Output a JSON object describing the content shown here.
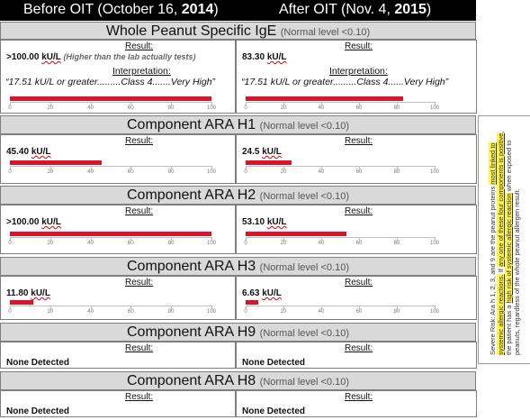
{
  "header": {
    "before_prefix": "Before OIT (October 16, ",
    "before_year": "2014",
    "before_suffix": ")",
    "after_prefix": "After OIT (Nov. 4, ",
    "after_year": "2015",
    "after_suffix": ")"
  },
  "sections": [
    {
      "title": "Whole Peanut Specific IgE",
      "normal": "(Normal level <0.10)",
      "before": {
        "result_label": "Result:",
        "value": ">100.00 ",
        "unit": "kU/L",
        "note": "(Higher than the lab actually tests)",
        "interp_label": "Interpretation:",
        "interp_text": "“17.51 kU/L or greater.........Class 4.......Very High”",
        "bar_value": 100
      },
      "after": {
        "result_label": "Result:",
        "value": "83.30 ",
        "unit": "kU/L",
        "interp_label": "Interpretation:",
        "interp_text": "“17.51 kU/L or greater.........Class 4......Very High”",
        "bar_value": 83.3
      }
    },
    {
      "title": "Component ARA H1",
      "normal": "(Normal level <0.10)",
      "before": {
        "result_label": "Result:",
        "value": "45.40 ",
        "unit": "kU/L",
        "bar_value": 45.4
      },
      "after": {
        "result_label": "Result:",
        "value": "24.5 ",
        "unit": "kU/L",
        "bar_value": 24.5
      }
    },
    {
      "title": "Component ARA H2",
      "normal": "(Normal level <0.10)",
      "before": {
        "result_label": "Result:",
        "value": ">100.00 ",
        "unit": "kU/L",
        "bar_value": 100
      },
      "after": {
        "result_label": "Result:",
        "value": "53.10 ",
        "unit": "kU/L",
        "bar_value": 53.1
      }
    },
    {
      "title": "Component ARA H3",
      "normal": "(Normal level <0.10)",
      "before": {
        "result_label": "Result:",
        "value": "11.80 ",
        "unit": "kU/L",
        "bar_value": 11.8
      },
      "after": {
        "result_label": "Result:",
        "value": "6.63 ",
        "unit": "kU/L",
        "bar_value": 6.63
      }
    },
    {
      "title": "Component ARA H9",
      "normal": "(Normal level <0.10)",
      "before": {
        "result_label": "Result:",
        "value": "None Detected"
      },
      "after": {
        "result_label": "Result:",
        "value": "None Detected"
      }
    },
    {
      "title": "Component ARA H8",
      "normal": "(Normal level <0.10)",
      "before": {
        "result_label": "Result:",
        "value": "None Detected"
      },
      "after": {
        "result_label": "Result:",
        "value": "None Detected"
      }
    }
  ],
  "axis": {
    "ticks": [
      "0",
      "20",
      "40",
      "60",
      "80",
      "100"
    ],
    "max": 100
  },
  "sidebar": {
    "p1": "Severe Risk: Ara h 1, 2, 3, and 9 are the peanut proteins ",
    "p1_hl": "most linked to systemic allergic reactions.",
    "p2": " If ",
    "p2_hl": "any one of these four components is positive",
    "p3": ", the patient has a ",
    "p3_hl": "high risk of systemic allergic reaction",
    "p4": " when exposed to peanuts, regardless of the whole peanut allergen result."
  },
  "colors": {
    "bar": "#d9152b",
    "header_bg": "#000000",
    "section_bg": "#d9d9d9",
    "highlight": "#fff34d"
  }
}
